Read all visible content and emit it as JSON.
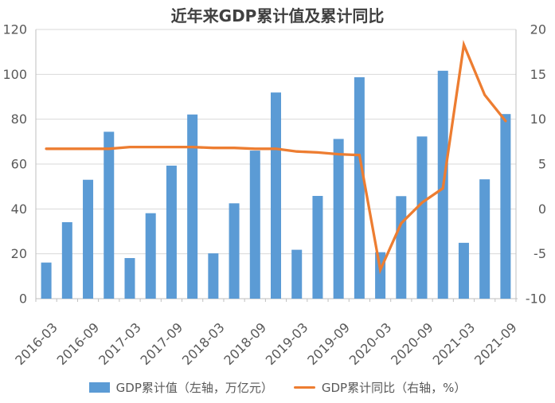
{
  "colors": {
    "bar": "#5B9BD5",
    "line": "#ED7D31",
    "grid": "#D9D9D9",
    "axis": "#BFBFBF",
    "axis_text": "#595959",
    "title_text": "#404040",
    "background": "#FFFFFF"
  },
  "chart_data": {
    "type": "bar+line",
    "title": "近年来GDP累计值及累计同比",
    "categories": [
      "2016-03",
      "2016-06",
      "2016-09",
      "2016-12",
      "2017-03",
      "2017-06",
      "2017-09",
      "2017-12",
      "2018-03",
      "2018-06",
      "2018-09",
      "2018-12",
      "2019-03",
      "2019-06",
      "2019-09",
      "2019-12",
      "2020-03",
      "2020-06",
      "2020-09",
      "2020-12",
      "2021-03",
      "2021-06",
      "2021-09"
    ],
    "x_tick_labels": [
      "2016-03",
      "2016-09",
      "2017-03",
      "2017-09",
      "2018-03",
      "2018-09",
      "2019-03",
      "2019-09",
      "2020-03",
      "2020-09",
      "2021-03",
      "2021-09"
    ],
    "x_tick_label_every": 2,
    "series": [
      {
        "name": "GDP累计值（左轴，万亿元）",
        "type": "bar",
        "axis": "left",
        "values": [
          16.1,
          34.1,
          53.0,
          74.4,
          18.1,
          38.1,
          59.3,
          82.1,
          20.2,
          42.5,
          66.0,
          91.9,
          21.8,
          45.8,
          71.2,
          98.7,
          20.7,
          45.7,
          72.3,
          101.6,
          24.9,
          53.2,
          82.3
        ]
      },
      {
        "name": "GDP累计同比（右轴，%）",
        "type": "line",
        "axis": "right",
        "values": [
          6.7,
          6.7,
          6.7,
          6.7,
          6.9,
          6.9,
          6.9,
          6.9,
          6.8,
          6.8,
          6.7,
          6.7,
          6.4,
          6.3,
          6.1,
          6.0,
          -6.8,
          -1.6,
          0.7,
          2.3,
          18.3,
          12.7,
          9.8
        ]
      }
    ],
    "left_axis": {
      "min": 0,
      "max": 120,
      "step": 20,
      "ticks": [
        0,
        20,
        40,
        60,
        80,
        100,
        120
      ]
    },
    "right_axis": {
      "min": -10,
      "max": 20,
      "step": 5,
      "ticks": [
        -10,
        -5,
        0,
        5,
        10,
        15,
        20
      ]
    },
    "grid": true,
    "legend_position": "bottom"
  }
}
